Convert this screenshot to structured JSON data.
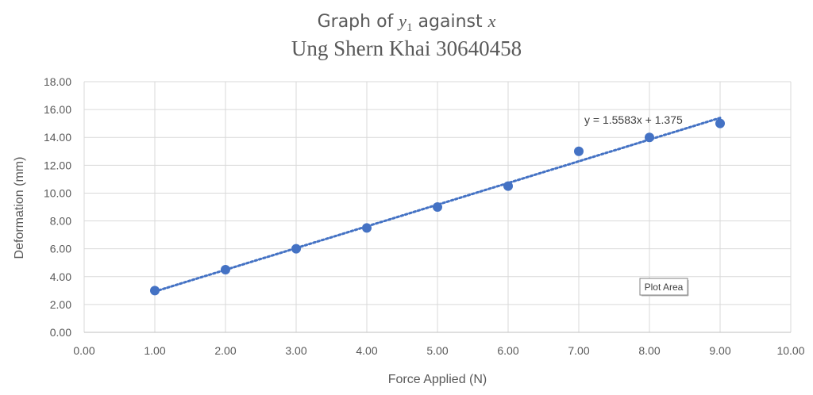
{
  "chart_data": {
    "type": "scatter",
    "title_line1": {
      "prefix": "Graph of ",
      "var": "y",
      "subscript": "1",
      "middle": " against ",
      "var2": "x"
    },
    "title_line2": "Ung Shern Khai 30640458",
    "xlabel": "Force Applied (N)",
    "ylabel": "Deformation (mm)",
    "xlim": [
      0,
      10
    ],
    "ylim": [
      0,
      18
    ],
    "x_ticks": [
      "0.00",
      "1.00",
      "2.00",
      "3.00",
      "4.00",
      "5.00",
      "6.00",
      "7.00",
      "8.00",
      "9.00",
      "10.00"
    ],
    "y_ticks": [
      "0.00",
      "2.00",
      "4.00",
      "6.00",
      "8.00",
      "10.00",
      "12.00",
      "14.00",
      "16.00",
      "18.00"
    ],
    "grid": true,
    "legend": "none",
    "series": [
      {
        "x": [
          1,
          2,
          3,
          4,
          5,
          6,
          7,
          8,
          9
        ],
        "y": [
          3.0,
          4.5,
          6.0,
          7.5,
          9.0,
          10.5,
          13.0,
          14.0,
          15.0
        ],
        "color": "#4472C4"
      }
    ],
    "trendline": {
      "type": "linear",
      "slope": 1.5583,
      "intercept": 1.375,
      "x_range": [
        1,
        9
      ],
      "style": "dotted",
      "color": "#4472C4",
      "equation_label": "y = 1.5583x + 1.375"
    },
    "tooltip": "Plot Area"
  }
}
